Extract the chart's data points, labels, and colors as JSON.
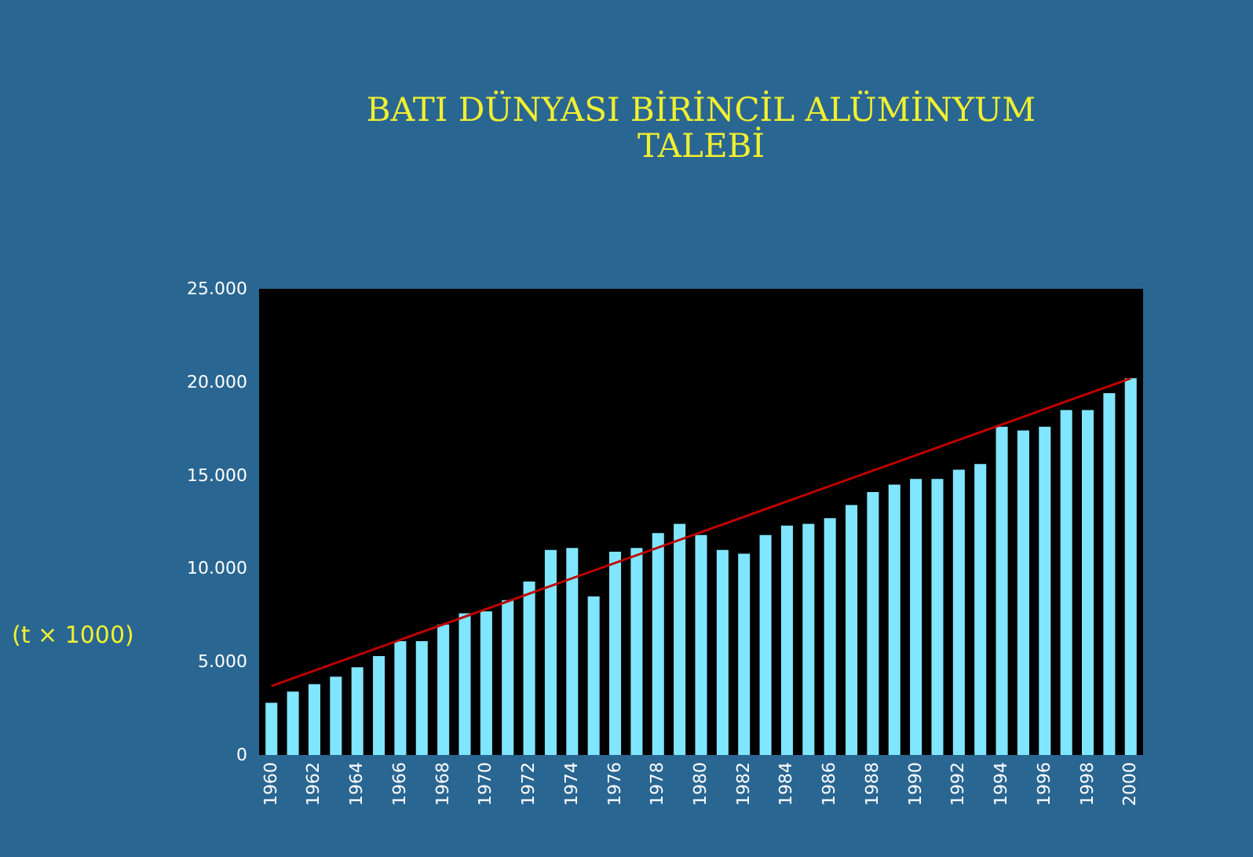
{
  "chart_data": {
    "type": "bar",
    "title": [
      "BATI DÜNYASI BİRİNCİL ALÜMİNYUM",
      "TALEBİ"
    ],
    "ylabel": "(t × 1000)",
    "categories": [
      "1960",
      null,
      "1962",
      null,
      "1964",
      null,
      "1966",
      null,
      "1968",
      null,
      "1970",
      null,
      "1972",
      null,
      "1974",
      null,
      "1976",
      null,
      "1978",
      null,
      "1980",
      null,
      "1982",
      null,
      "1984",
      null,
      "1986",
      null,
      "1988",
      null,
      "1990",
      null,
      "1992",
      null,
      "1994",
      null,
      "1996",
      null,
      "1998",
      null,
      "2000"
    ],
    "series": [
      {
        "color": "#80e6ff",
        "values": [
          2800,
          3400,
          3800,
          4200,
          4700,
          5300,
          6100,
          6100,
          7000,
          7600,
          7700,
          8300,
          9300,
          11000,
          11100,
          8500,
          10900,
          11100,
          11900,
          12400,
          11800,
          11000,
          10800,
          11800,
          12300,
          12400,
          12700,
          13400,
          14100,
          14500,
          14800,
          14800,
          15300,
          15600,
          17600,
          17400,
          17600,
          18500,
          18500,
          19400,
          20200
        ]
      },
      {
        "type": "line",
        "color": "#c00000",
        "values": [
          3700,
          null,
          null,
          null,
          null,
          null,
          null,
          null,
          null,
          null,
          null,
          null,
          null,
          null,
          null,
          null,
          null,
          null,
          null,
          null,
          null,
          null,
          null,
          null,
          null,
          null,
          null,
          null,
          null,
          null,
          null,
          null,
          null,
          null,
          null,
          null,
          null,
          null,
          null,
          null,
          20200
        ]
      }
    ],
    "ylim": [
      0,
      25000
    ],
    "yticks": [
      {
        "value": 0,
        "label": "0"
      },
      {
        "value": 5000,
        "label": "5.000"
      },
      {
        "value": 10000,
        "label": "10.000"
      },
      {
        "value": 15000,
        "label": "15.000"
      },
      {
        "value": 20000,
        "label": "20.000"
      },
      {
        "value": 25000,
        "label": "25.000"
      }
    ],
    "grid": false
  }
}
